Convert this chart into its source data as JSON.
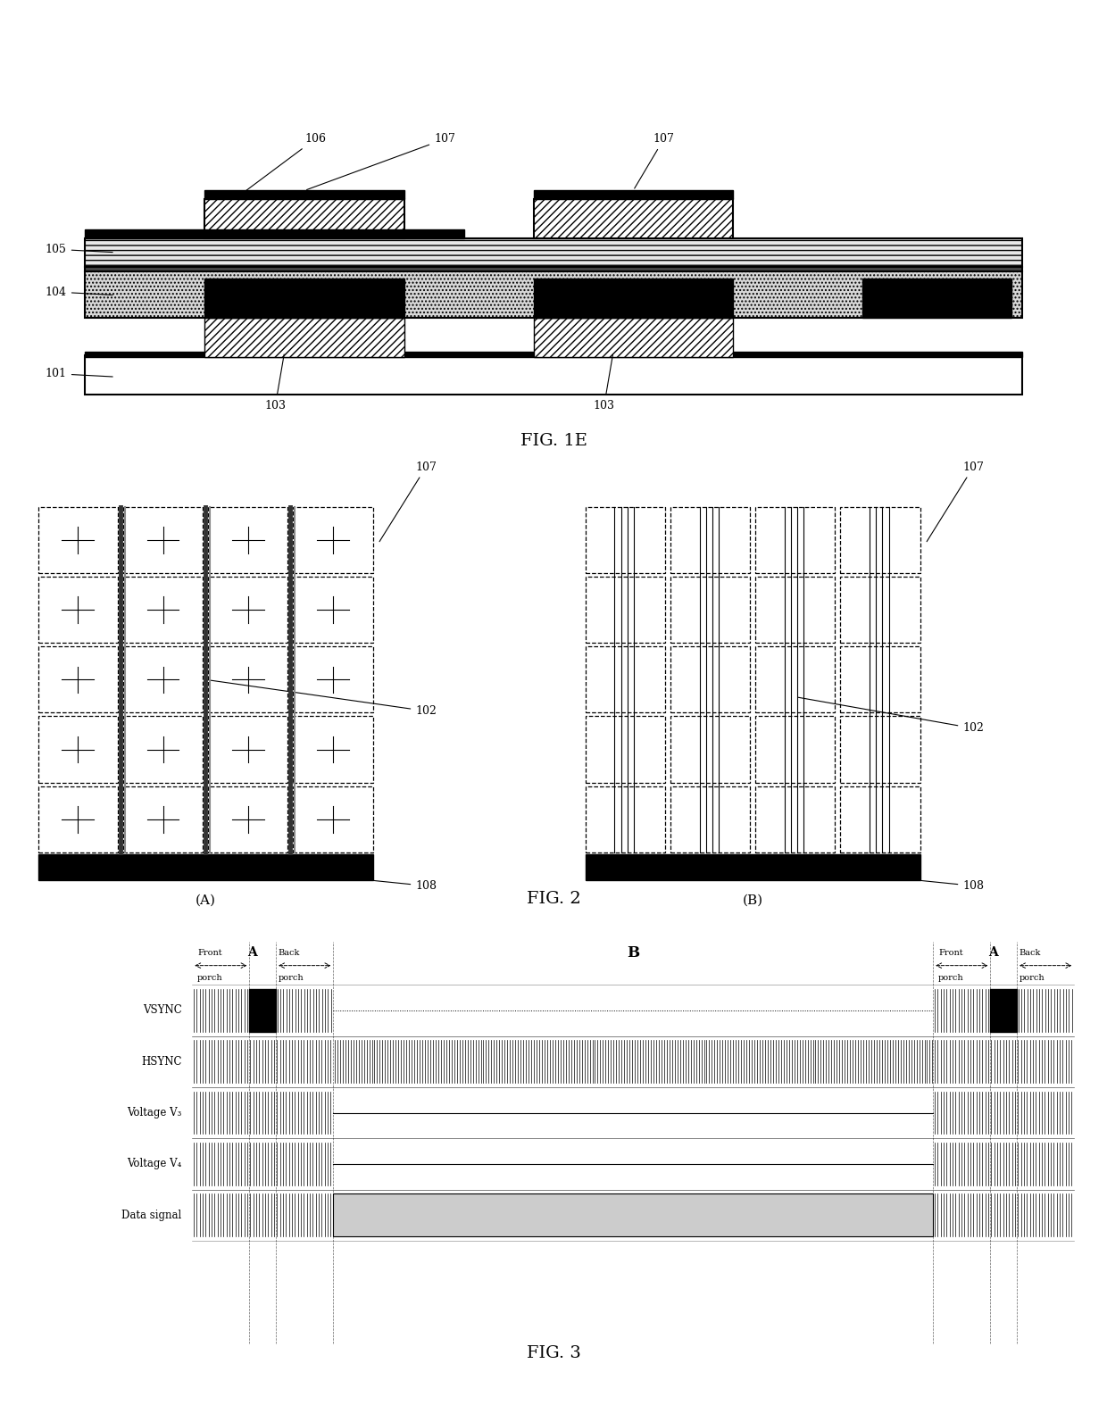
{
  "fig_width": 12.4,
  "fig_height": 15.93,
  "bg_color": "#ffffff",
  "fig1e": {
    "title": "FIG. 1E"
  },
  "fig2": {
    "title": "FIG. 2",
    "label_A": "(A)",
    "label_B": "(B)"
  },
  "fig3": {
    "title": "FIG. 3",
    "rows": [
      "VSYNC",
      "HSYNC",
      "Voltage V₃",
      "Voltage V₄",
      "Data signal"
    ]
  }
}
